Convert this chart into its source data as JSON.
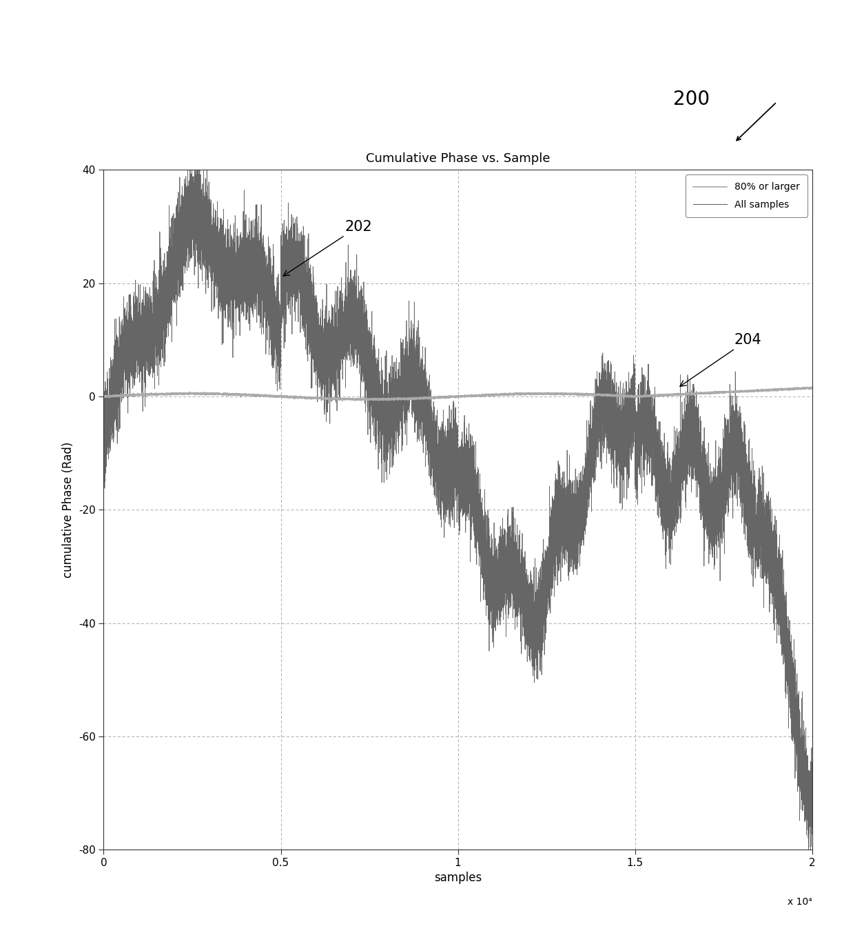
{
  "title": "Cumulative Phase vs. Sample",
  "xlabel": "samples",
  "ylabel": "cumulative Phase (Rad)",
  "xlim": [
    0,
    20000
  ],
  "ylim": [
    -80,
    40
  ],
  "yticks": [
    -80,
    -60,
    -40,
    -20,
    0,
    20,
    40
  ],
  "xticks": [
    0,
    5000,
    10000,
    15000,
    20000
  ],
  "xtick_labels": [
    "0",
    "0.5",
    "1",
    "1.5",
    "2"
  ],
  "xscale_label": "x 10⁴",
  "legend_labels": [
    "80% or larger",
    "All samples"
  ],
  "line_all_color": "#777777",
  "line_filt_color": "#999999",
  "annotation_200": "200",
  "annotation_202": "202",
  "annotation_204": "204",
  "background_color": "#ffffff",
  "grid_color": "#aaaaaa",
  "title_fontsize": 13,
  "label_fontsize": 12,
  "tick_fontsize": 11,
  "n_samples": 20000
}
